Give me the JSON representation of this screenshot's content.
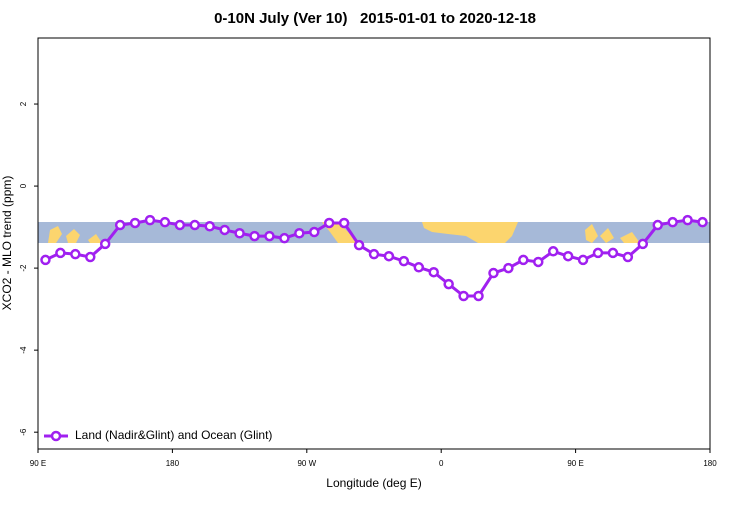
{
  "chart_data": {
    "type": "line",
    "title": "0-10N July (Ver 10)   2015-01-01 to 2020-12-18",
    "x_label": "Longitude (deg E)",
    "y_label": "XCO2 - MLO trend (ppm)",
    "xlim": [
      90,
      540
    ],
    "ylim": [
      -6.41,
      3.61
    ],
    "xticks": [
      {
        "value": 90,
        "label": "90 E"
      },
      180,
      {
        "value": 270,
        "label": "90 W"
      },
      {
        "value": 360,
        "label": "0"
      },
      {
        "value": 450,
        "label": "90 E"
      },
      {
        "value": 540,
        "label": "180"
      }
    ],
    "yticks": [
      2,
      0,
      -2,
      -4,
      -6
    ],
    "grid": false,
    "legend": "bottom-left",
    "x": [
      95,
      105,
      115,
      125,
      135,
      145,
      155,
      165,
      175,
      185,
      195,
      205,
      215,
      225,
      235,
      245,
      255,
      265,
      275,
      285,
      295,
      305,
      315,
      325,
      335,
      345,
      355,
      365,
      375,
      385,
      395,
      405,
      415,
      425,
      435,
      445,
      455,
      465,
      475,
      485,
      495,
      505,
      515,
      525,
      535
    ],
    "series": [
      {
        "name": "Land (Nadir&Glint) and Ocean (Glint)",
        "color": "#a020f0",
        "values": [
          -1.8,
          -1.63,
          -1.66,
          -1.73,
          -1.41,
          -0.95,
          -0.9,
          -0.83,
          -0.88,
          -0.95,
          -0.95,
          -0.98,
          -1.07,
          -1.15,
          -1.22,
          -1.22,
          -1.27,
          -1.15,
          -1.12,
          -0.9,
          -0.9,
          -1.44,
          -1.66,
          -1.71,
          -1.83,
          -1.98,
          -2.1,
          -2.39,
          -2.68,
          -2.68,
          -2.12,
          -2.0,
          -1.8,
          -1.85,
          -1.59,
          -1.71,
          -1.8,
          -1.63,
          -1.63,
          -1.73,
          -1.41,
          -0.95,
          -0.88,
          -0.83,
          -0.88
        ]
      }
    ]
  }
}
